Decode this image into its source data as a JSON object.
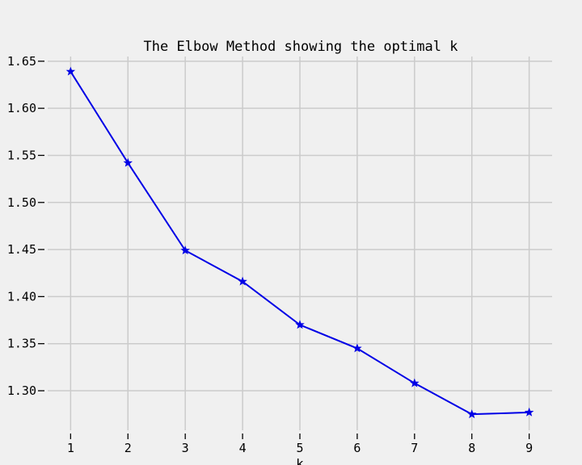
{
  "chart_data": {
    "type": "line",
    "title": "The Elbow Method showing the optimal k",
    "xlabel": "k",
    "ylabel": "",
    "x": [
      1,
      2,
      3,
      4,
      5,
      6,
      7,
      8,
      9
    ],
    "series": [
      {
        "name": "",
        "values": [
          1.639,
          1.542,
          1.449,
          1.416,
          1.37,
          1.345,
          1.308,
          1.275,
          1.277
        ],
        "color": "#0000e6",
        "marker": "star"
      }
    ],
    "xticks": [
      "1",
      "2",
      "3",
      "4",
      "5",
      "6",
      "7",
      "8",
      "9"
    ],
    "yticks": [
      "1.30",
      "1.35",
      "1.40",
      "1.45",
      "1.50",
      "1.55",
      "1.60",
      "1.65"
    ],
    "xlim": [
      0.6,
      9.4
    ],
    "ylim": [
      1.258,
      1.655
    ],
    "grid": true,
    "colors": {
      "background": "#f0f0f0",
      "grid": "#cbcbcb",
      "line": "#0000e6"
    }
  }
}
